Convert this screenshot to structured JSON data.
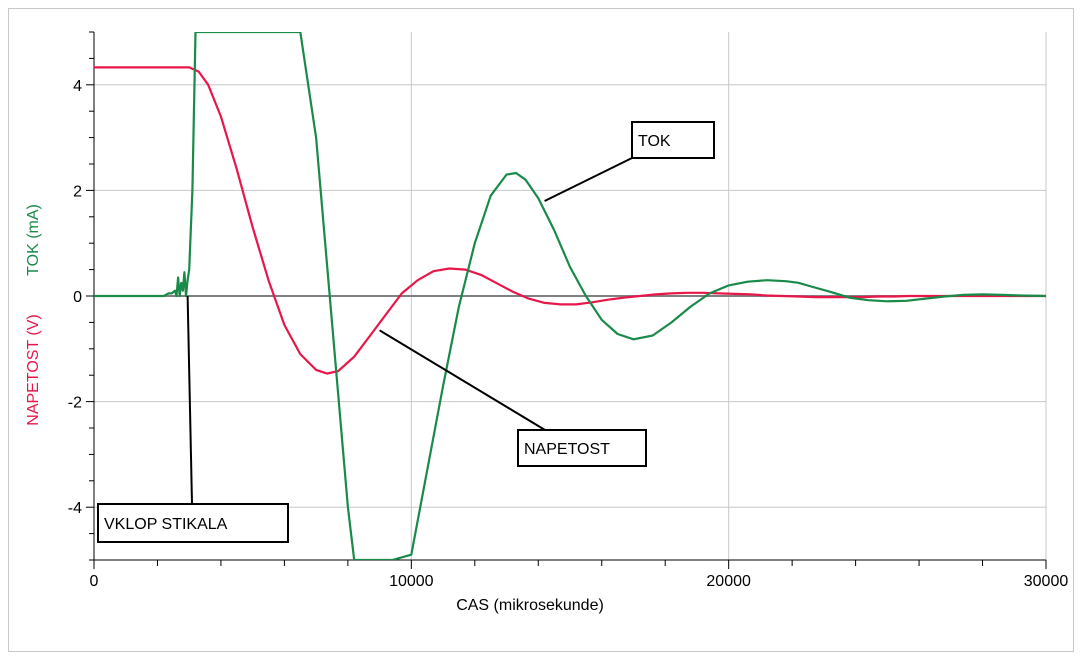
{
  "chart_data": {
    "type": "line",
    "title": "",
    "xlabel": "CAS (mikrosekunde)",
    "ylabel_left": "NAPETOST (V)",
    "ylabel_right": "TOK (mA)",
    "xlim": [
      0,
      30000
    ],
    "ylim": [
      -5,
      5
    ],
    "x_ticks": [
      0,
      10000,
      20000,
      30000
    ],
    "y_ticks": [
      -4,
      -2,
      0,
      2,
      4
    ],
    "grid": true,
    "colors": {
      "napetost": "#e8174a",
      "tok": "#1a8a4a",
      "axis": "#808080",
      "grid": "#c8c8c8"
    },
    "series": [
      {
        "name": "NAPETOST",
        "color": "#e8174a",
        "x": [
          0,
          2500,
          3000,
          3300,
          3600,
          4000,
          4500,
          5000,
          5500,
          6000,
          6500,
          7000,
          7350,
          7700,
          8200,
          8700,
          9200,
          9700,
          10200,
          10700,
          11200,
          11700,
          12200,
          12700,
          13200,
          13700,
          14200,
          14700,
          15200,
          15700,
          16200,
          16700,
          17200,
          17700,
          18200,
          18700,
          19200,
          19700,
          20200,
          20700,
          21200,
          21700,
          22200,
          22700,
          23200,
          23700,
          24200,
          24700,
          25200,
          25700,
          26500,
          27500,
          28500,
          30000
        ],
        "y": [
          4.33,
          4.33,
          4.33,
          4.25,
          4.0,
          3.4,
          2.4,
          1.3,
          0.3,
          -0.55,
          -1.1,
          -1.4,
          -1.47,
          -1.42,
          -1.15,
          -0.75,
          -0.35,
          0.05,
          0.3,
          0.47,
          0.52,
          0.5,
          0.4,
          0.24,
          0.08,
          -0.05,
          -0.13,
          -0.16,
          -0.16,
          -0.12,
          -0.07,
          -0.03,
          0.0,
          0.03,
          0.05,
          0.06,
          0.06,
          0.05,
          0.04,
          0.03,
          0.01,
          0.0,
          -0.01,
          -0.02,
          -0.02,
          -0.02,
          -0.02,
          -0.01,
          -0.01,
          0.0,
          0.0,
          0.0,
          0.0,
          0.0
        ]
      },
      {
        "name": "TOK",
        "color": "#1a8a4a",
        "x": [
          0,
          2200,
          2350,
          2450,
          2550,
          2600,
          2650,
          2700,
          2750,
          2800,
          2850,
          2900,
          2950,
          3000,
          3100,
          3200,
          6500,
          7000,
          7500,
          8000,
          8200,
          9400,
          10000,
          10500,
          11000,
          11500,
          12000,
          12500,
          13000,
          13300,
          13600,
          14000,
          14500,
          15000,
          15500,
          16000,
          16500,
          17000,
          17600,
          18200,
          18800,
          19400,
          20000,
          20600,
          21200,
          21800,
          22200,
          22600,
          23200,
          23800,
          24400,
          25000,
          25600,
          26200,
          26800,
          27400,
          28000,
          28600,
          29200,
          30000
        ],
        "y": [
          0,
          0,
          0.05,
          0.05,
          0.1,
          0.0,
          0.35,
          0.0,
          0.25,
          0.1,
          0.45,
          0.0,
          0.3,
          0.5,
          2.0,
          5.0,
          5.0,
          3.0,
          -0.5,
          -4.0,
          -5.0,
          -5.0,
          -4.9,
          -3.3,
          -1.7,
          -0.2,
          1.0,
          1.9,
          2.3,
          2.33,
          2.2,
          1.85,
          1.25,
          0.55,
          0.0,
          -0.45,
          -0.72,
          -0.82,
          -0.75,
          -0.5,
          -0.2,
          0.05,
          0.2,
          0.27,
          0.3,
          0.28,
          0.25,
          0.18,
          0.08,
          -0.03,
          -0.08,
          -0.1,
          -0.09,
          -0.05,
          -0.01,
          0.02,
          0.03,
          0.02,
          0.01,
          0.0
        ]
      }
    ],
    "annotations": [
      {
        "text": "TOK",
        "pointer_x": 14200,
        "pointer_y": 1.8
      },
      {
        "text": "NAPETOST",
        "pointer_x": 9000,
        "pointer_y": -0.65
      },
      {
        "text": "VKLOP STIKALA",
        "pointer_x": 2950,
        "pointer_y": 0.0
      }
    ]
  }
}
